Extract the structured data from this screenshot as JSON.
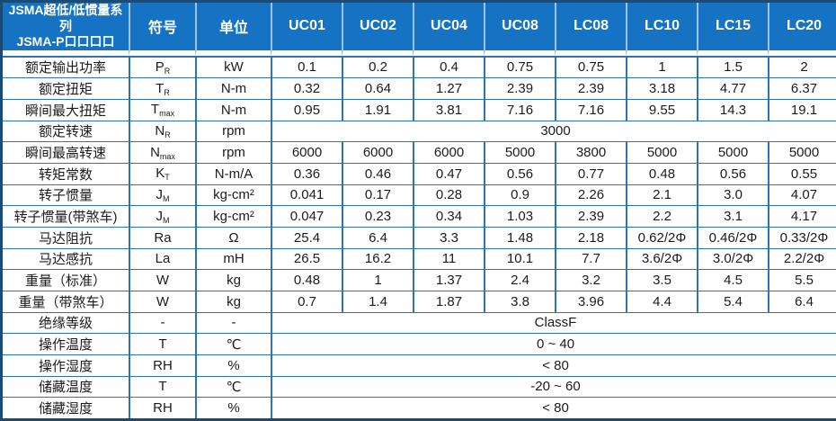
{
  "table": {
    "title_line1": "JSMA超低/低惯量系列",
    "title_line2": "JSMA-P口口口口",
    "header": {
      "symbol": "符号",
      "unit": "单位",
      "models": [
        "UC01",
        "UC02",
        "UC04",
        "UC08",
        "LC08",
        "LC10",
        "LC15",
        "LC20"
      ]
    },
    "rows": [
      {
        "label": "额定输出功率",
        "symbol": "P",
        "sub": "R",
        "unit": "kW",
        "values": [
          "0.1",
          "0.2",
          "0.4",
          "0.75",
          "0.75",
          "1",
          "1.5",
          "2"
        ]
      },
      {
        "label": "额定扭矩",
        "symbol": "T",
        "sub": "R",
        "unit": "N-m",
        "values": [
          "0.32",
          "0.64",
          "1.27",
          "2.39",
          "2.39",
          "3.18",
          "4.77",
          "6.37"
        ]
      },
      {
        "label": "瞬间最大扭矩",
        "symbol": "T",
        "sub": "max",
        "unit": "N-m",
        "values": [
          "0.95",
          "1.91",
          "3.81",
          "7.16",
          "7.16",
          "9.55",
          "14.3",
          "19.1"
        ]
      },
      {
        "label": "额定转速",
        "symbol": "N",
        "sub": "R",
        "unit": "rpm",
        "span": "3000"
      },
      {
        "label": "瞬间最高转速",
        "symbol": "N",
        "sub": "max",
        "unit": "rpm",
        "values": [
          "6000",
          "6000",
          "6000",
          "5000",
          "3800",
          "5000",
          "5000",
          "5000"
        ]
      },
      {
        "label": "转矩常数",
        "symbol": "K",
        "sub": "T",
        "unit": "N-m/A",
        "values": [
          "0.36",
          "0.46",
          "0.47",
          "0.56",
          "0.77",
          "0.48",
          "0.56",
          "0.55"
        ]
      },
      {
        "label": "转子惯量",
        "symbol": "J",
        "sub": "M",
        "unit": "kg-cm²",
        "values": [
          "0.041",
          "0.17",
          "0.28",
          "0.9",
          "2.26",
          "2.1",
          "3.0",
          "4.07"
        ]
      },
      {
        "label": "转子惯量(带煞车)",
        "symbol": "J",
        "sub": "M",
        "unit": "kg-cm²",
        "values": [
          "0.047",
          "0.23",
          "0.34",
          "1.03",
          "2.39",
          "2.2",
          "3.1",
          "4.17"
        ]
      },
      {
        "label": "马达阻抗",
        "symbol": "Ra",
        "sub": "",
        "unit": "Ω",
        "values": [
          "25.4",
          "6.4",
          "3.3",
          "1.48",
          "2.18",
          "0.62/2Φ",
          "0.46/2Φ",
          "0.33/2Φ"
        ]
      },
      {
        "label": "马达感抗",
        "symbol": "La",
        "sub": "",
        "unit": "mH",
        "values": [
          "26.5",
          "16.2",
          "11",
          "10.1",
          "7.7",
          "3.6/2Φ",
          "3.0/2Φ",
          "2.2/2Φ"
        ]
      },
      {
        "label": "重量（标准）",
        "symbol": "W",
        "sub": "",
        "unit": "kg",
        "values": [
          "0.48",
          "1",
          "1.37",
          "2.4",
          "3.2",
          "3.5",
          "4.5",
          "5.5"
        ]
      },
      {
        "label": "重量（带煞车）",
        "symbol": "W",
        "sub": "",
        "unit": "kg",
        "values": [
          "0.7",
          "1.4",
          "1.87",
          "3.8",
          "3.96",
          "4.4",
          "5.4",
          "6.4"
        ]
      },
      {
        "label": "绝缘等级",
        "symbol": "-",
        "sub": "",
        "unit": "-",
        "span": "ClassF"
      },
      {
        "label": "操作温度",
        "symbol": "T",
        "sub": "",
        "unit": "℃",
        "span": "0 ~ 40"
      },
      {
        "label": "操作湿度",
        "symbol": "RH",
        "sub": "",
        "unit": "%",
        "span": "< 80"
      },
      {
        "label": "储藏温度",
        "symbol": "T",
        "sub": "",
        "unit": "℃",
        "span": "-20 ~ 60"
      },
      {
        "label": "储藏湿度",
        "symbol": "RH",
        "sub": "",
        "unit": "%",
        "span": "< 80"
      }
    ],
    "colors": {
      "header_background": "#1673C3",
      "header_text": "#FFFFFF",
      "header_divider": "#9DC3E6",
      "grid_line": "#2E74B5",
      "outer_border": "#1A4A76",
      "body_text": "#1B1B1B",
      "body_background": "#FFFFFF"
    }
  }
}
